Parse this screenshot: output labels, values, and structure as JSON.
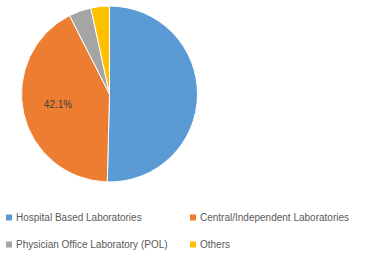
{
  "chart_data": {
    "type": "pie",
    "categories": [
      "Hospital Based Laboratories",
      "Central/Independent Laboratories",
      "Physician Office Laboratory (POL)",
      "Others"
    ],
    "values": [
      50.4,
      42.1,
      4.1,
      3.4
    ],
    "value_labels": [
      null,
      "42.1%",
      null,
      null
    ],
    "colors": [
      "#5b9bd5",
      "#ed7d31",
      "#a5a5a5",
      "#ffc000"
    ],
    "legend": "bottom"
  }
}
